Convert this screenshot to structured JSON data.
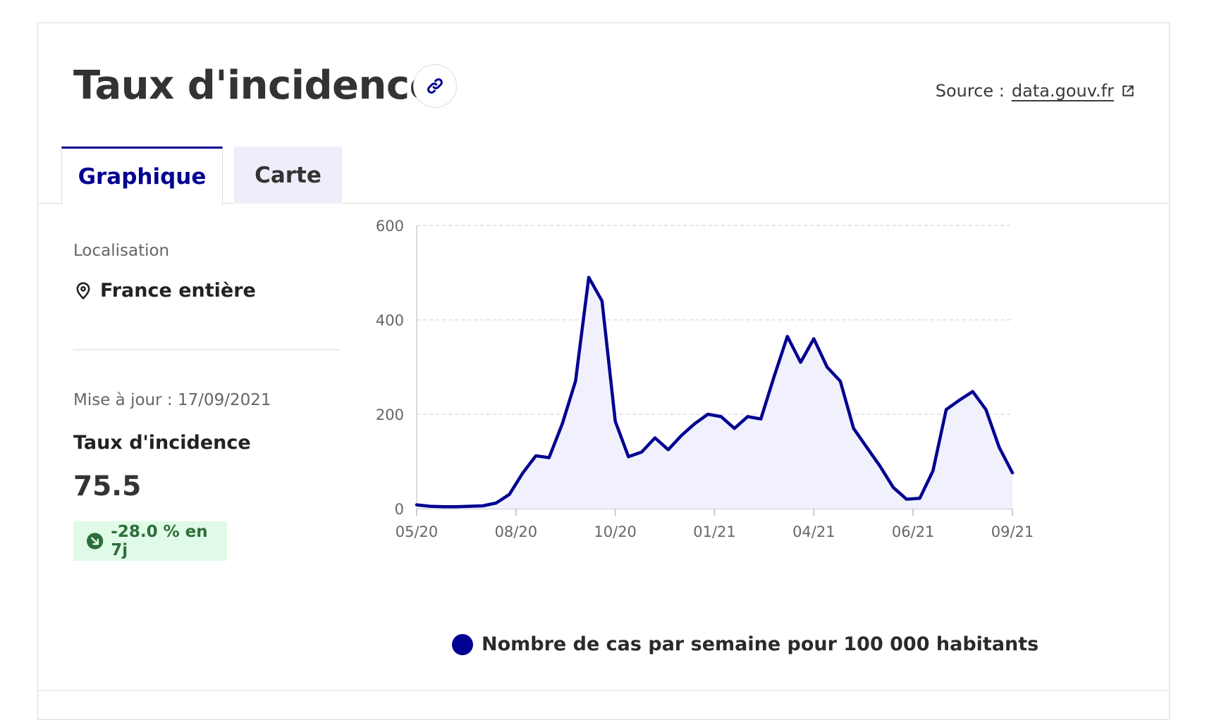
{
  "header": {
    "title": "Taux d'incidence",
    "source_label": "Source :",
    "source_link": "data.gouv.fr"
  },
  "tabs": [
    {
      "label": "Graphique",
      "active": true
    },
    {
      "label": "Carte",
      "active": false
    }
  ],
  "sidebar": {
    "location_label": "Localisation",
    "location_value": "France entière",
    "update_label": "Mise à jour : 17/09/2021",
    "metric_label": "Taux d'incidence",
    "metric_value": "75.5",
    "trend": "-28.0 % en 7j"
  },
  "colors": {
    "primary": "#000091",
    "area_fill": "#f1f1fd",
    "trend_bg": "#dffae6",
    "trend_fg": "#2c6e3b"
  },
  "icons": [
    "link-icon",
    "external-link-icon",
    "location-pin-icon",
    "trend-down-icon"
  ],
  "chart_data": {
    "type": "area",
    "x_ticks": [
      "05/20",
      "08/20",
      "10/20",
      "01/21",
      "04/21",
      "06/21",
      "09/21"
    ],
    "y_ticks": [
      0,
      200,
      400,
      600
    ],
    "ylim": [
      0,
      600
    ],
    "grid": true,
    "legend_position": "bottom",
    "series": [
      {
        "name": "Nombre de cas par semaine pour 100 000 habitants",
        "x": [
          "05/20",
          "05/20",
          "06/20",
          "06/20",
          "07/20",
          "07/20",
          "08/20",
          "08/20",
          "09/20",
          "09/20",
          "09/20",
          "10/20",
          "10/20",
          "10/20",
          "10/20",
          "11/20",
          "11/20",
          "11/20",
          "12/20",
          "12/20",
          "12/20",
          "12/20",
          "01/21",
          "01/21",
          "02/21",
          "02/21",
          "03/21",
          "03/21",
          "03/21",
          "04/21",
          "04/21",
          "04/21",
          "04/21",
          "05/21",
          "05/21",
          "05/21",
          "06/21",
          "06/21",
          "06/21",
          "07/21",
          "07/21",
          "07/21",
          "08/21",
          "08/21",
          "08/21",
          "09/21"
        ],
        "values": [
          8,
          5,
          4,
          4,
          5,
          6,
          12,
          30,
          75,
          112,
          108,
          180,
          270,
          490,
          440,
          185,
          110,
          120,
          150,
          125,
          155,
          180,
          200,
          195,
          170,
          195,
          190,
          280,
          365,
          310,
          360,
          300,
          270,
          170,
          130,
          90,
          45,
          20,
          22,
          80,
          210,
          230,
          248,
          210,
          130,
          76
        ]
      }
    ]
  }
}
